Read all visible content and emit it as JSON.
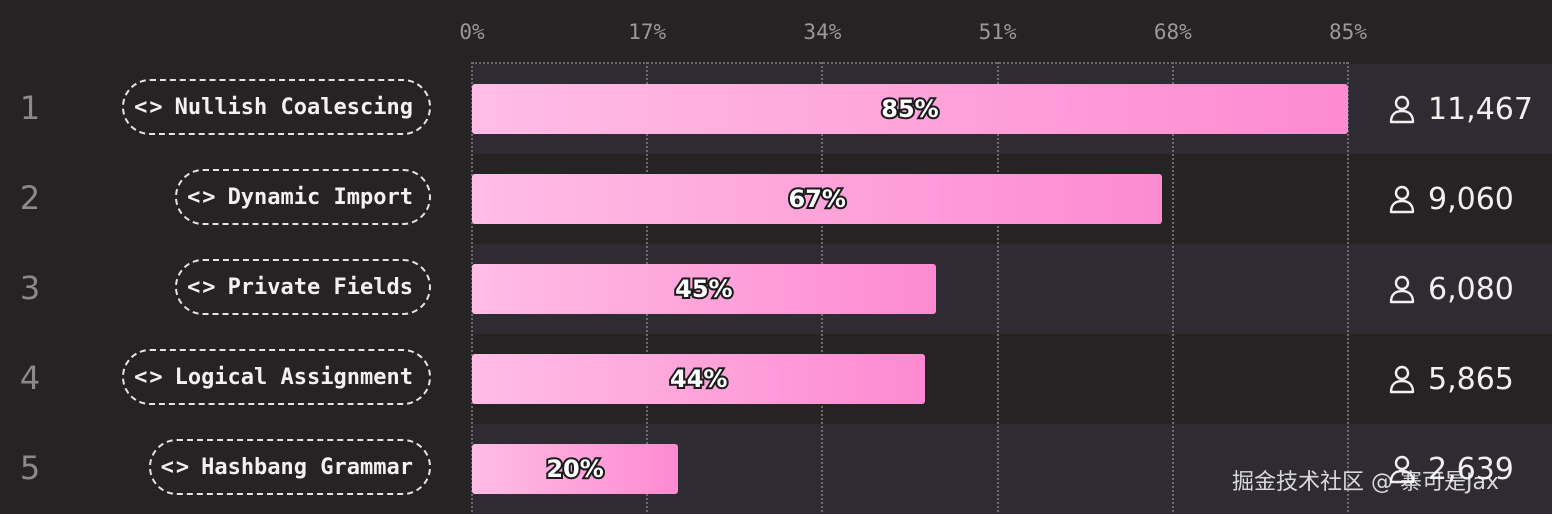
{
  "chart_data": {
    "type": "bar",
    "orientation": "horizontal",
    "x_ticks": [
      "0%",
      "17%",
      "34%",
      "51%",
      "68%",
      "85%"
    ],
    "xlim": [
      0,
      85
    ],
    "grid": true,
    "rows": [
      {
        "rank": "1",
        "label": "Nullish Coalescing",
        "value": 85,
        "value_label": "85%",
        "count": "11,467"
      },
      {
        "rank": "2",
        "label": "Dynamic Import",
        "value": 67,
        "value_label": "67%",
        "count": "9,060"
      },
      {
        "rank": "3",
        "label": "Private Fields",
        "value": 45,
        "value_label": "45%",
        "count": "6,080"
      },
      {
        "rank": "4",
        "label": "Logical Assignment",
        "value": 44,
        "value_label": "44%",
        "count": "5,865"
      },
      {
        "rank": "5",
        "label": "Hashbang Grammar",
        "value": 20,
        "value_label": "20%",
        "count": "2,639"
      }
    ],
    "bar_color_start": "#ffbde4",
    "bar_color_end": "#fd8ad2",
    "row_icon": "code-icon",
    "count_icon": "user-icon"
  },
  "watermark": "掘金技术社区 @ 寨可是Jax"
}
